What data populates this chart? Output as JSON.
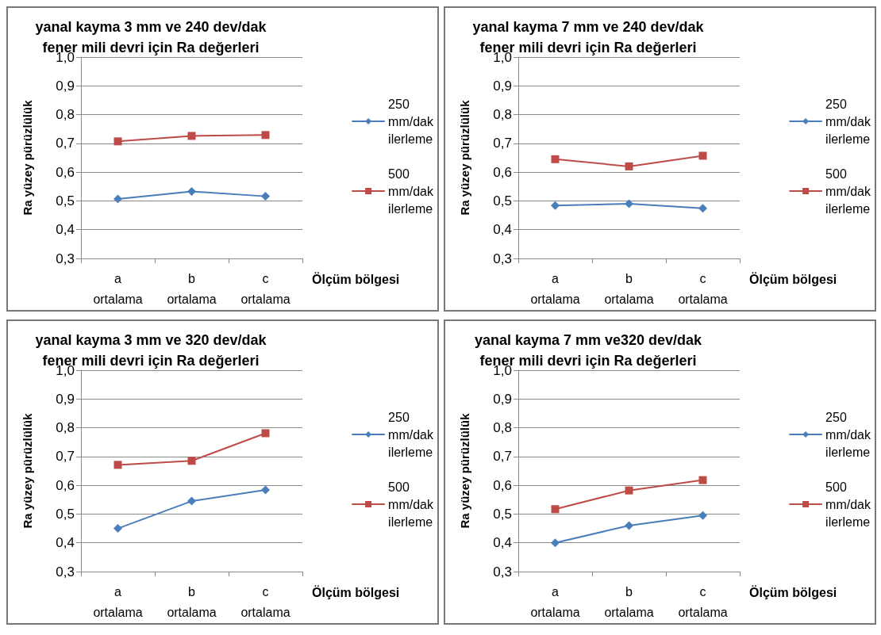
{
  "chart_data": [
    {
      "type": "line",
      "title": "yanal kayma 3 mm ve 240 dev/dak\nfener mili devri için Ra değerleri",
      "xlabel": "Ölçüm bölgesi",
      "ylabel": "Ra yüzey pürüzlülük",
      "categories": [
        "a\nortalama",
        "b\nortalama",
        "c\nortalama"
      ],
      "ylim": [
        0.3,
        1.0
      ],
      "yticks": [
        {
          "value": 0.3,
          "label": "0,3"
        },
        {
          "value": 0.4,
          "label": "0,4"
        },
        {
          "value": 0.5,
          "label": "0,5"
        },
        {
          "value": 0.6,
          "label": "0,6"
        },
        {
          "value": 0.7,
          "label": "0,7"
        },
        {
          "value": 0.8,
          "label": "0,8"
        },
        {
          "value": 0.9,
          "label": "0,9"
        },
        {
          "value": 1.0,
          "label": "1,0"
        }
      ],
      "grid": "y",
      "legend": "right",
      "series": [
        {
          "name": "250\nmm/dak\nilerleme",
          "color": "#4a7ebb",
          "marker": "diamond",
          "values": [
            0.507,
            0.533,
            0.516
          ]
        },
        {
          "name": "500\nmm/dak\nilerleme",
          "color": "#be4b48",
          "marker": "square",
          "values": [
            0.707,
            0.726,
            0.729
          ]
        }
      ]
    },
    {
      "type": "line",
      "title": "yanal kayma 7 mm ve 240 dev/dak\nfener mili devri için Ra değerleri",
      "xlabel": "Ölçüm bölgesi",
      "ylabel": "Ra yüzey pürüzlülük",
      "categories": [
        "a\nortalama",
        "b\nortalama",
        "c\nortalama"
      ],
      "ylim": [
        0.3,
        1.0
      ],
      "yticks": [
        {
          "value": 0.3,
          "label": "0,3"
        },
        {
          "value": 0.4,
          "label": "0,4"
        },
        {
          "value": 0.5,
          "label": "0,5"
        },
        {
          "value": 0.6,
          "label": "0,6"
        },
        {
          "value": 0.7,
          "label": "0,7"
        },
        {
          "value": 0.8,
          "label": "0,8"
        },
        {
          "value": 0.9,
          "label": "0,9"
        },
        {
          "value": 1.0,
          "label": "1,0"
        }
      ],
      "grid": "y",
      "legend": "right",
      "series": [
        {
          "name": "250\nmm/dak\nilerleme",
          "color": "#4a7ebb",
          "marker": "diamond",
          "values": [
            0.484,
            0.49,
            0.474
          ]
        },
        {
          "name": "500\nmm/dak\nilerleme",
          "color": "#be4b48",
          "marker": "square",
          "values": [
            0.645,
            0.62,
            0.657
          ]
        }
      ]
    },
    {
      "type": "line",
      "title": "yanal kayma 3 mm ve 320 dev/dak\nfener mili devri için Ra değerleri",
      "xlabel": "Ölçüm bölgesi",
      "ylabel": "Ra yüzey pürüzlülük",
      "categories": [
        "a\nortalama",
        "b\nortalama",
        "c\nortalama"
      ],
      "ylim": [
        0.3,
        1.0
      ],
      "yticks": [
        {
          "value": 0.3,
          "label": "0,3"
        },
        {
          "value": 0.4,
          "label": "0,4"
        },
        {
          "value": 0.5,
          "label": "0,5"
        },
        {
          "value": 0.6,
          "label": "0,6"
        },
        {
          "value": 0.7,
          "label": "0,7"
        },
        {
          "value": 0.8,
          "label": "0,8"
        },
        {
          "value": 0.9,
          "label": "0,9"
        },
        {
          "value": 1.0,
          "label": "1,0"
        }
      ],
      "grid": "y",
      "legend": "right",
      "series": [
        {
          "name": "250\nmm/dak\nilerleme",
          "color": "#4a7ebb",
          "marker": "diamond",
          "values": [
            0.45,
            0.545,
            0.584
          ]
        },
        {
          "name": "500\nmm/dak\nilerleme",
          "color": "#be4b48",
          "marker": "square",
          "values": [
            0.671,
            0.685,
            0.781
          ]
        }
      ]
    },
    {
      "type": "line",
      "title": "yanal kayma 7 mm ve320 dev/dak\nfener mili devri için Ra değerleri",
      "xlabel": "Ölçüm bölgesi",
      "ylabel": "Ra yüzey pürüzlülük",
      "categories": [
        "a\nortalama",
        "b\nortalama",
        "c\nortalama"
      ],
      "ylim": [
        0.3,
        1.0
      ],
      "yticks": [
        {
          "value": 0.3,
          "label": "0,3"
        },
        {
          "value": 0.4,
          "label": "0,4"
        },
        {
          "value": 0.5,
          "label": "0,5"
        },
        {
          "value": 0.6,
          "label": "0,6"
        },
        {
          "value": 0.7,
          "label": "0,7"
        },
        {
          "value": 0.8,
          "label": "0,8"
        },
        {
          "value": 0.9,
          "label": "0,9"
        },
        {
          "value": 1.0,
          "label": "1,0"
        }
      ],
      "grid": "y",
      "legend": "right",
      "series": [
        {
          "name": "250\nmm/dak\nilerleme",
          "color": "#4a7ebb",
          "marker": "diamond",
          "values": [
            0.4,
            0.46,
            0.495
          ]
        },
        {
          "name": "500\nmm/dak\nilerleme",
          "color": "#be4b48",
          "marker": "square",
          "values": [
            0.517,
            0.582,
            0.618
          ]
        }
      ]
    }
  ]
}
